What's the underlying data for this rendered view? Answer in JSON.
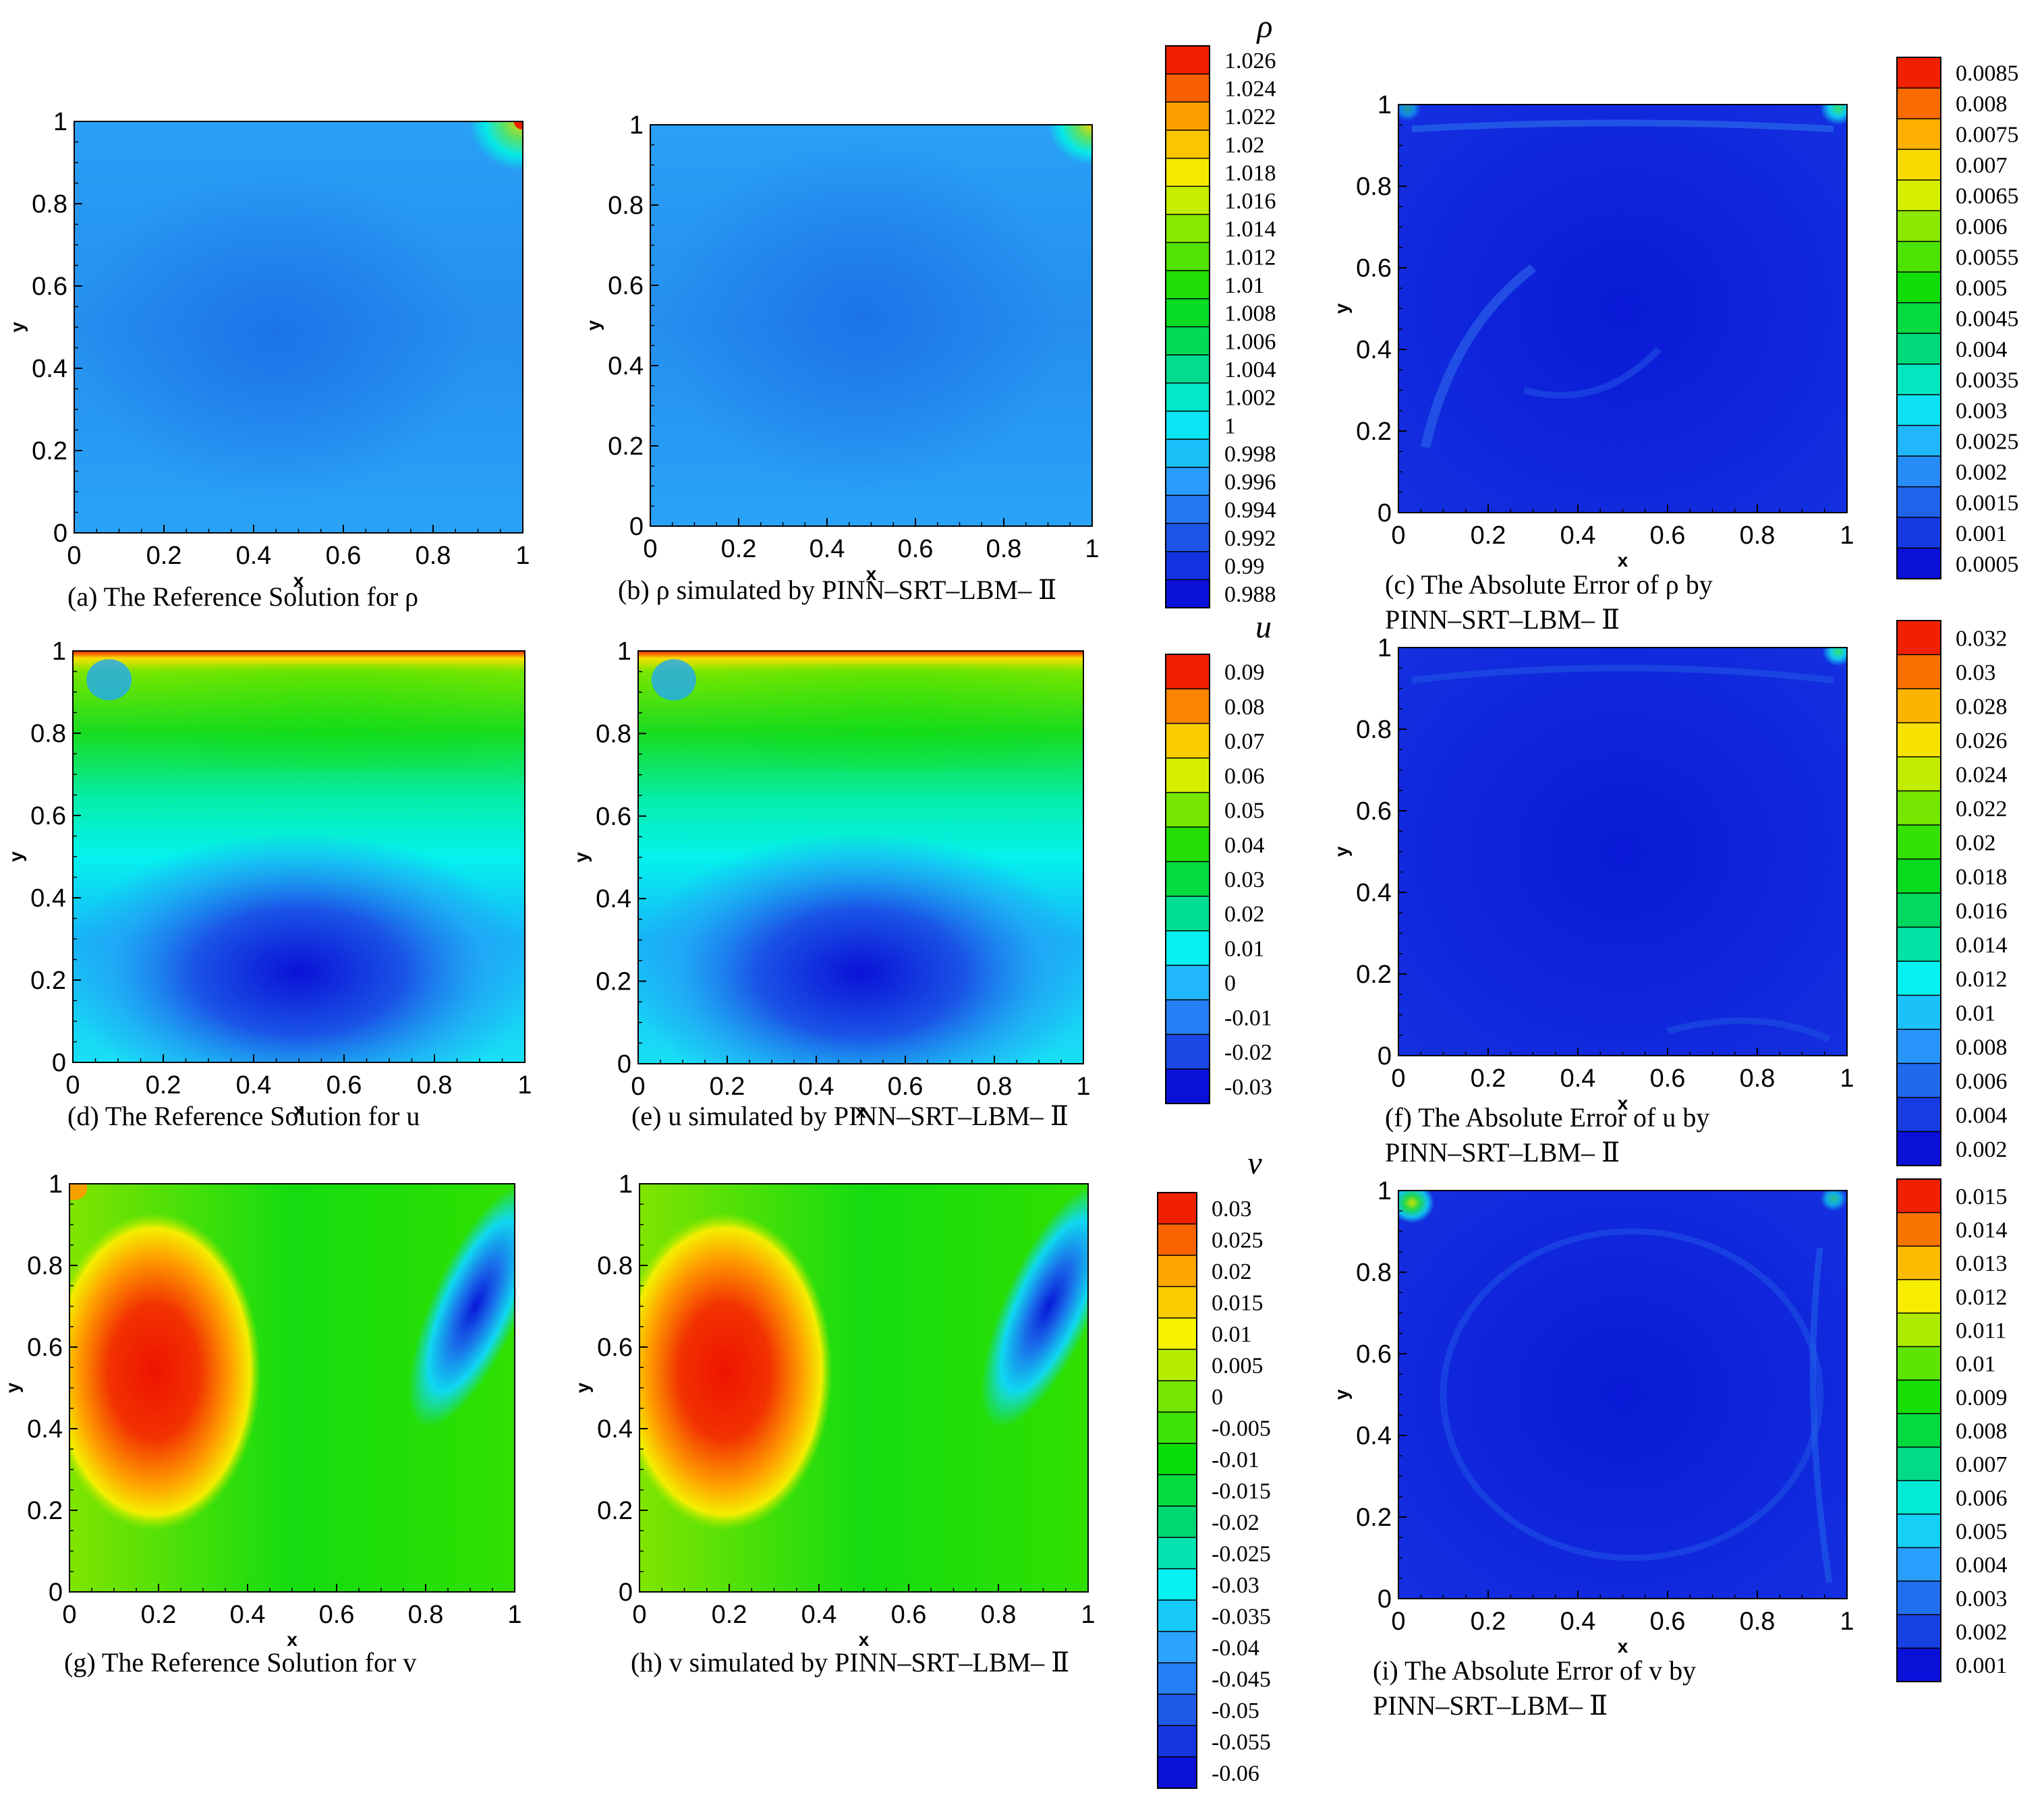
{
  "colors": {
    "rainbow": [
      "#0a10d8",
      "#1e5ae8",
      "#2aa4ff",
      "#05f0f0",
      "#00d873",
      "#08dd08",
      "#74e600",
      "#f6f200",
      "#ffa500",
      "#f02000"
    ],
    "axis": "#000000"
  },
  "colorbars": [
    {
      "symbol": "ρ",
      "labels": [
        "1.026",
        "1.024",
        "1.022",
        "1.02",
        "1.018",
        "1.016",
        "1.014",
        "1.012",
        "1.01",
        "1.008",
        "1.006",
        "1.004",
        "1.002",
        "1",
        "0.998",
        "0.996",
        "0.994",
        "0.992",
        "0.99",
        "0.988"
      ]
    },
    {
      "symbol": "",
      "labels": [
        "0.0085",
        "0.008",
        "0.0075",
        "0.007",
        "0.0065",
        "0.006",
        "0.0055",
        "0.005",
        "0.0045",
        "0.004",
        "0.0035",
        "0.003",
        "0.0025",
        "0.002",
        "0.0015",
        "0.001",
        "0.0005"
      ]
    },
    {
      "symbol": "u",
      "labels": [
        "0.09",
        "0.08",
        "0.07",
        "0.06",
        "0.05",
        "0.04",
        "0.03",
        "0.02",
        "0.01",
        "0",
        "-0.01",
        "-0.02",
        "-0.03"
      ]
    },
    {
      "symbol": "",
      "labels": [
        "0.032",
        "0.03",
        "0.028",
        "0.026",
        "0.024",
        "0.022",
        "0.02",
        "0.018",
        "0.016",
        "0.014",
        "0.012",
        "0.01",
        "0.008",
        "0.006",
        "0.004",
        "0.002"
      ]
    },
    {
      "symbol": "v",
      "labels": [
        "0.03",
        "0.025",
        "0.02",
        "0.015",
        "0.01",
        "0.005",
        "0",
        "-0.005",
        "-0.01",
        "-0.015",
        "-0.02",
        "-0.025",
        "-0.03",
        "-0.035",
        "-0.04",
        "-0.045",
        "-0.05",
        "-0.055",
        "-0.06"
      ]
    },
    {
      "symbol": "",
      "labels": [
        "0.015",
        "0.014",
        "0.013",
        "0.012",
        "0.011",
        "0.01",
        "0.009",
        "0.008",
        "0.007",
        "0.006",
        "0.005",
        "0.004",
        "0.003",
        "0.002",
        "0.001"
      ]
    }
  ],
  "chart_data": [
    {
      "type": "heatmap",
      "field": "ρ",
      "xlabel": "x",
      "ylabel": "y",
      "xlim": [
        0,
        1
      ],
      "ylim": [
        0,
        1
      ],
      "xticks": [
        "0",
        "0.2",
        "0.4",
        "0.6",
        "0.8",
        "1"
      ],
      "yticks": [
        "0",
        "0.2",
        "0.4",
        "0.6",
        "0.8",
        "1"
      ],
      "caption": [
        "(a) The Reference Solution for ρ"
      ]
    },
    {
      "type": "heatmap",
      "field": "ρ",
      "xlabel": "x",
      "ylabel": "y",
      "xlim": [
        0,
        1
      ],
      "ylim": [
        0,
        1
      ],
      "xticks": [
        "0",
        "0.2",
        "0.4",
        "0.6",
        "0.8",
        "1"
      ],
      "yticks": [
        "0",
        "0.2",
        "0.4",
        "0.6",
        "0.8",
        "1"
      ],
      "caption": [
        "(b) ρ simulated by PINN–SRT–LBM– Ⅱ"
      ]
    },
    {
      "type": "heatmap",
      "field": "|error of ρ|",
      "xlabel": "x",
      "ylabel": "y",
      "xlim": [
        0,
        1
      ],
      "ylim": [
        0,
        1
      ],
      "xticks": [
        "0",
        "0.2",
        "0.4",
        "0.6",
        "0.8",
        "1"
      ],
      "yticks": [
        "0",
        "0.2",
        "0.4",
        "0.6",
        "0.8",
        "1"
      ],
      "caption": [
        "(c) The Absolute Error of ρ by",
        "PINN–SRT–LBM– Ⅱ"
      ]
    },
    {
      "type": "heatmap",
      "field": "u",
      "xlabel": "x",
      "ylabel": "y",
      "xlim": [
        0,
        1
      ],
      "ylim": [
        0,
        1
      ],
      "xticks": [
        "0",
        "0.2",
        "0.4",
        "0.6",
        "0.8",
        "1"
      ],
      "yticks": [
        "0",
        "0.2",
        "0.4",
        "0.6",
        "0.8",
        "1"
      ],
      "caption": [
        "(d) The Reference Solution for u"
      ]
    },
    {
      "type": "heatmap",
      "field": "u",
      "xlabel": "x",
      "ylabel": "y",
      "xlim": [
        0,
        1
      ],
      "ylim": [
        0,
        1
      ],
      "xticks": [
        "0",
        "0.2",
        "0.4",
        "0.6",
        "0.8",
        "1"
      ],
      "yticks": [
        "0",
        "0.2",
        "0.4",
        "0.6",
        "0.8",
        "1"
      ],
      "caption": [
        "(e) u simulated by PINN–SRT–LBM– Ⅱ"
      ]
    },
    {
      "type": "heatmap",
      "field": "|error of u|",
      "xlabel": "x",
      "ylabel": "y",
      "xlim": [
        0,
        1
      ],
      "ylim": [
        0,
        1
      ],
      "xticks": [
        "0",
        "0.2",
        "0.4",
        "0.6",
        "0.8",
        "1"
      ],
      "yticks": [
        "0",
        "0.2",
        "0.4",
        "0.6",
        "0.8",
        "1"
      ],
      "caption": [
        "(f) The Absolute Error of u by",
        "PINN–SRT–LBM– Ⅱ"
      ]
    },
    {
      "type": "heatmap",
      "field": "v",
      "xlabel": "x",
      "ylabel": "y",
      "xlim": [
        0,
        1
      ],
      "ylim": [
        0,
        1
      ],
      "xticks": [
        "0",
        "0.2",
        "0.4",
        "0.6",
        "0.8",
        "1"
      ],
      "yticks": [
        "0",
        "0.2",
        "0.4",
        "0.6",
        "0.8",
        "1"
      ],
      "caption": [
        "(g) The Reference Solution for v"
      ]
    },
    {
      "type": "heatmap",
      "field": "v",
      "xlabel": "x",
      "ylabel": "y",
      "xlim": [
        0,
        1
      ],
      "ylim": [
        0,
        1
      ],
      "xticks": [
        "0",
        "0.2",
        "0.4",
        "0.6",
        "0.8",
        "1"
      ],
      "yticks": [
        "0",
        "0.2",
        "0.4",
        "0.6",
        "0.8",
        "1"
      ],
      "caption": [
        "(h) v simulated by PINN–SRT–LBM– Ⅱ"
      ]
    },
    {
      "type": "heatmap",
      "field": "|error of v|",
      "xlabel": "x",
      "ylabel": "y",
      "xlim": [
        0,
        1
      ],
      "ylim": [
        0,
        1
      ],
      "xticks": [
        "0",
        "0.2",
        "0.4",
        "0.6",
        "0.8",
        "1"
      ],
      "yticks": [
        "0",
        "0.2",
        "0.4",
        "0.6",
        "0.8",
        "1"
      ],
      "caption": [
        "(i) The Absolute Error of v by",
        "PINN–SRT–LBM– Ⅱ"
      ]
    }
  ]
}
